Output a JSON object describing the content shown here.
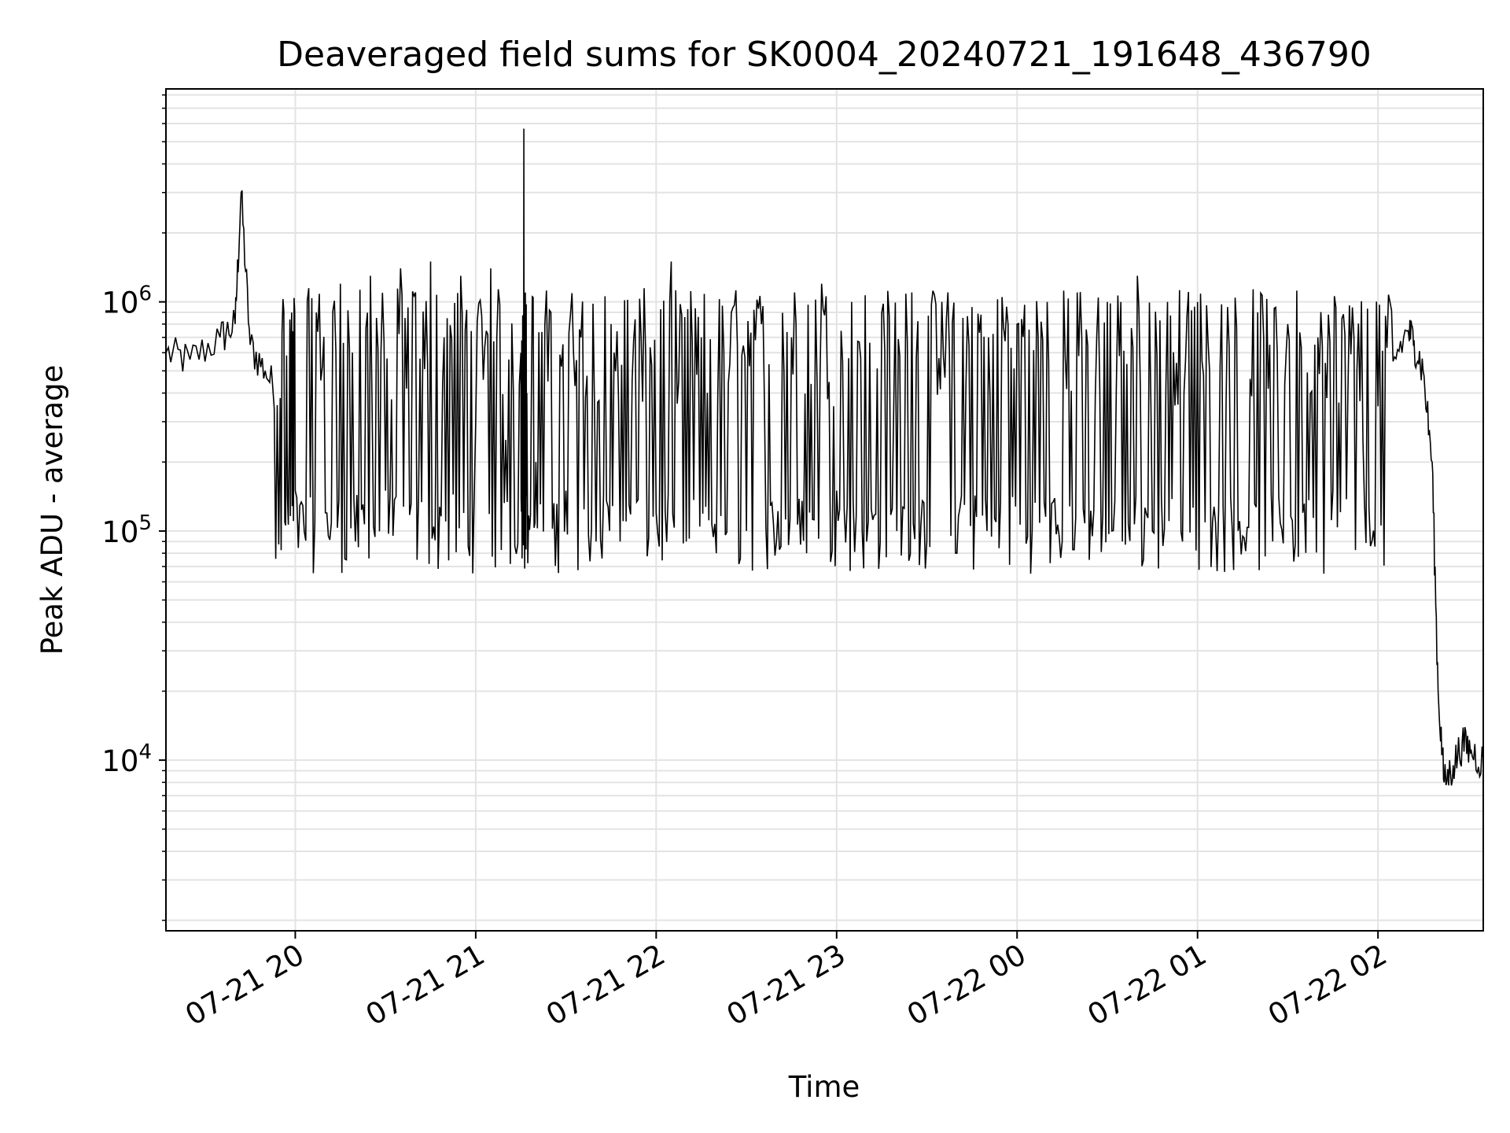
{
  "chart_data": {
    "type": "line",
    "title": "Deaveraged field sums for SK0004_20240721_191648_436790",
    "xlabel": "Time",
    "ylabel": "Peak ADU - average",
    "x_ticks": [
      "07-21 20",
      "07-21 21",
      "07-21 22",
      "07-21 23",
      "07-22 00",
      "07-22 01",
      "07-22 02"
    ],
    "y_ticks": [
      {
        "value": 10000,
        "base": "10",
        "exp": "4"
      },
      {
        "value": 100000,
        "base": "10",
        "exp": "5"
      },
      {
        "value": 1000000,
        "base": "10",
        "exp": "6"
      }
    ],
    "y_scale": "log",
    "xlim": [
      "2024-07-21 19:17",
      "2024-07-22 02:35"
    ],
    "ylim": [
      1800,
      8500000
    ],
    "grid": true,
    "series": [
      {
        "color": "#000000",
        "x": [
          "2024-07-21 19:17",
          "2024-07-21 19:25",
          "2024-07-21 19:35",
          "2024-07-21 19:40",
          "2024-07-21 19:42",
          "2024-07-21 19:45",
          "2024-07-21 19:50",
          "2024-07-21 19:55",
          "2024-07-21 19:58",
          "2024-07-21 20:00",
          "2024-07-21 20:05",
          "2024-07-21 20:10",
          "2024-07-21 20:15",
          "2024-07-21 20:20",
          "2024-07-21 20:25",
          "2024-07-21 20:30",
          "2024-07-21 20:35",
          "2024-07-21 20:40",
          "2024-07-21 20:45",
          "2024-07-21 20:50",
          "2024-07-21 20:55",
          "2024-07-21 21:00",
          "2024-07-21 21:05",
          "2024-07-21 21:10",
          "2024-07-21 21:15",
          "2024-07-21 21:16",
          "2024-07-21 21:17",
          "2024-07-21 21:20",
          "2024-07-21 21:25",
          "2024-07-21 21:30",
          "2024-07-21 21:35",
          "2024-07-21 21:40",
          "2024-07-21 21:45",
          "2024-07-21 21:50",
          "2024-07-21 21:55",
          "2024-07-21 22:00",
          "2024-07-21 22:05",
          "2024-07-21 22:10",
          "2024-07-21 22:15",
          "2024-07-21 22:20",
          "2024-07-21 22:25",
          "2024-07-21 22:30",
          "2024-07-21 22:35",
          "2024-07-21 22:40",
          "2024-07-21 22:45",
          "2024-07-21 22:50",
          "2024-07-21 22:55",
          "2024-07-21 23:00",
          "2024-07-21 23:05",
          "2024-07-21 23:10",
          "2024-07-21 23:15",
          "2024-07-21 23:20",
          "2024-07-21 23:25",
          "2024-07-21 23:30",
          "2024-07-21 23:35",
          "2024-07-21 23:40",
          "2024-07-21 23:45",
          "2024-07-21 23:50",
          "2024-07-21 23:55",
          "2024-07-22 00:00",
          "2024-07-22 00:05",
          "2024-07-22 00:10",
          "2024-07-22 00:15",
          "2024-07-22 00:20",
          "2024-07-22 00:25",
          "2024-07-22 00:30",
          "2024-07-22 00:35",
          "2024-07-22 00:40",
          "2024-07-22 00:45",
          "2024-07-22 00:50",
          "2024-07-22 00:55",
          "2024-07-22 01:00",
          "2024-07-22 01:05",
          "2024-07-22 01:10",
          "2024-07-22 01:15",
          "2024-07-22 01:20",
          "2024-07-22 01:25",
          "2024-07-22 01:30",
          "2024-07-22 01:35",
          "2024-07-22 01:40",
          "2024-07-22 01:45",
          "2024-07-22 01:50",
          "2024-07-22 01:55",
          "2024-07-22 02:00",
          "2024-07-22 02:05",
          "2024-07-22 02:10",
          "2024-07-22 02:12",
          "2024-07-22 02:15",
          "2024-07-22 02:18",
          "2024-07-22 02:20",
          "2024-07-22 02:22",
          "2024-07-22 02:25",
          "2024-07-22 02:28",
          "2024-07-22 02:31",
          "2024-07-22 02:35"
        ],
        "y": [
          600000,
          560000,
          700000,
          800000,
          3000000,
          650000,
          500000,
          380000,
          250000,
          150000,
          140000,
          120000,
          1200000,
          90000,
          1300000,
          150000,
          1400000,
          1100000,
          1500000,
          110000,
          1300000,
          300000,
          1400000,
          250000,
          600000,
          5700000,
          400000,
          200000,
          900000,
          150000,
          700000,
          90000,
          800000,
          110000,
          700000,
          120000,
          1500000,
          90000,
          700000,
          80000,
          900000,
          100000,
          800000,
          90000,
          700000,
          80000,
          1200000,
          150000,
          1000000,
          90000,
          900000,
          100000,
          1100000,
          90000,
          1000000,
          80000,
          950000,
          100000,
          1050000,
          800000,
          100000,
          1000000,
          90000,
          1100000,
          95000,
          1000000,
          90000,
          1300000,
          100000,
          1000000,
          90000,
          1000000,
          110000,
          950000,
          95000,
          900000,
          90000,
          800000,
          120000,
          700000,
          150000,
          400000,
          250000,
          350000,
          550000,
          750000,
          680000,
          500000,
          200000,
          20000,
          8000,
          9500,
          12000,
          11000,
          10000
        ]
      }
    ]
  }
}
